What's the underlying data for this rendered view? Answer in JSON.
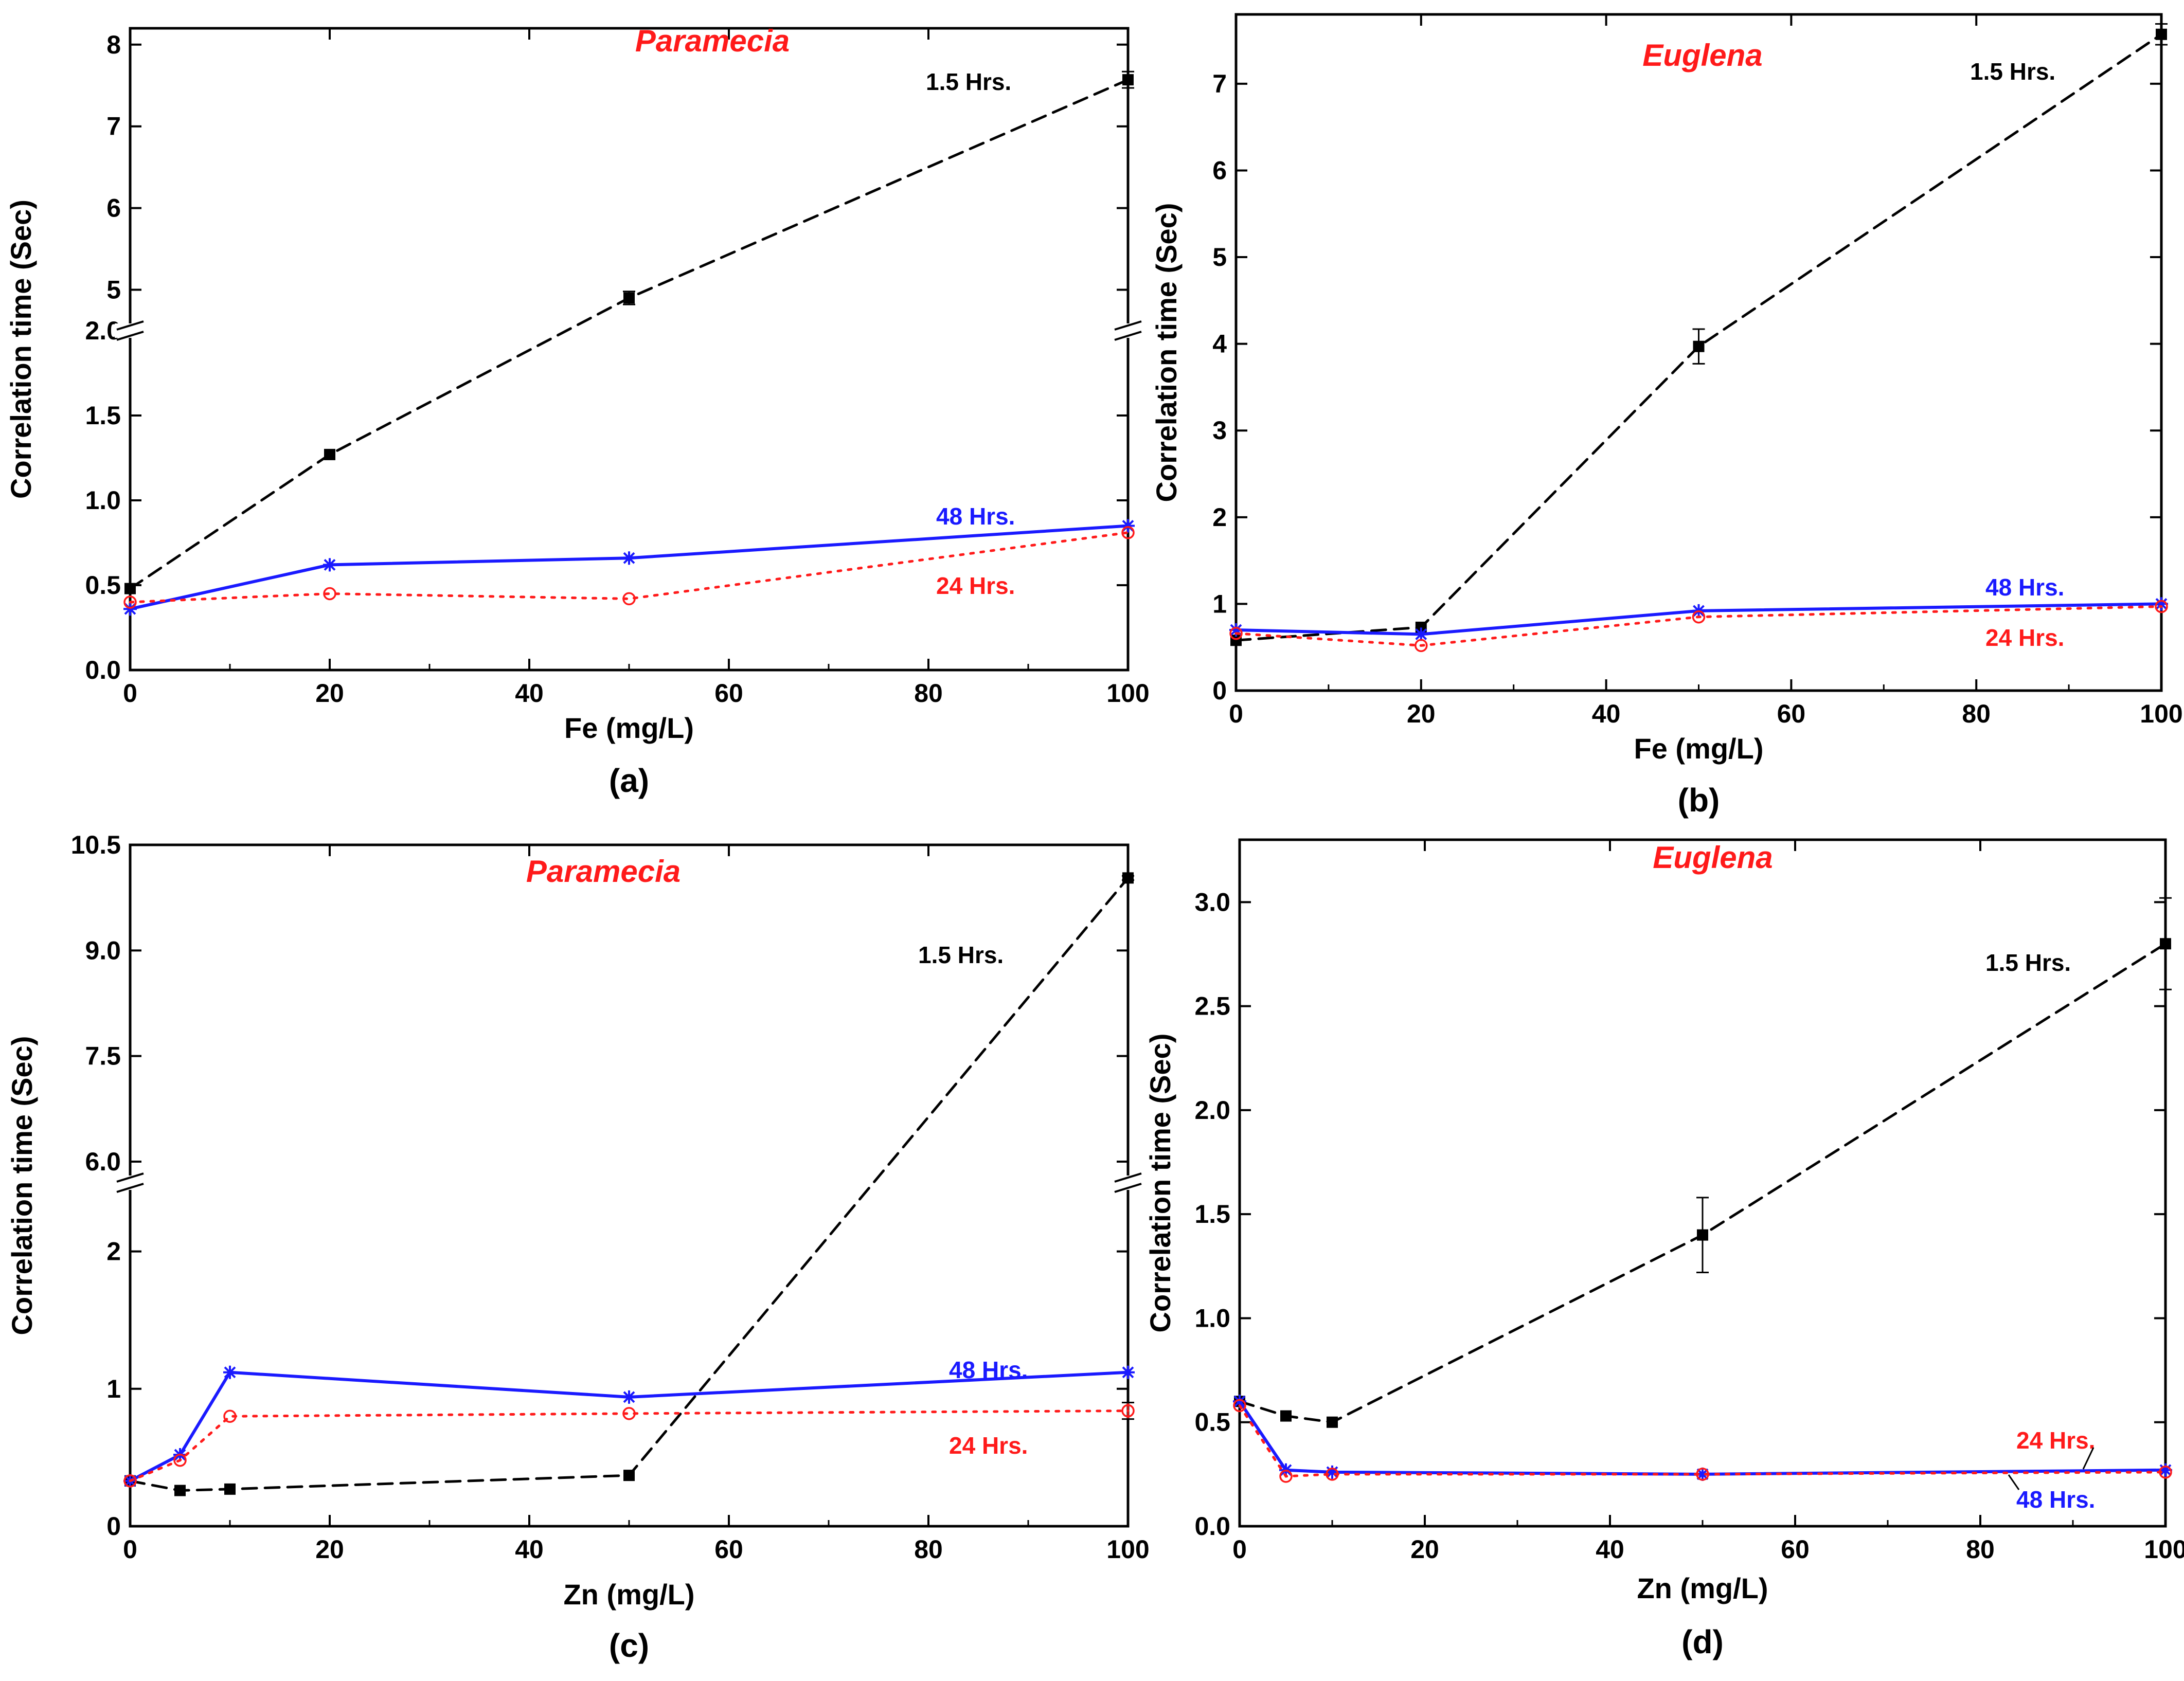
{
  "colors": {
    "black": "#000000",
    "blue": "#1a1aff",
    "red": "#ff1a1a",
    "title": "#ff1a1a"
  },
  "chart_data": [
    {
      "panel": "(a)",
      "type": "line",
      "title": "Paramecia",
      "xlabel": "Fe (mg/L)",
      "ylabel": "Correlation time (Sec)",
      "xlim": [
        0,
        100
      ],
      "xticks": [
        "0",
        "20",
        "40",
        "60",
        "80",
        "100"
      ],
      "y_break": true,
      "ylim_lower": [
        0,
        2.0
      ],
      "yticks_lower": [
        "0.0",
        "0.5",
        "1.0",
        "1.5",
        "2.0"
      ],
      "ylim_upper": [
        4.5,
        8.2
      ],
      "yticks_upper": [
        "5",
        "6",
        "7",
        "8"
      ],
      "series": [
        {
          "name": "1.5 Hrs.",
          "color": "#000000",
          "dash": "dashed",
          "marker": "square",
          "x": [
            0,
            20,
            50,
            100
          ],
          "y": [
            0.48,
            1.27,
            4.9,
            7.57
          ],
          "err": [
            0,
            0,
            0.08,
            0.1
          ]
        },
        {
          "name": "48 Hrs.",
          "color": "#1a1aff",
          "dash": "solid",
          "marker": "star",
          "x": [
            0,
            20,
            50,
            100
          ],
          "y": [
            0.36,
            0.62,
            0.66,
            0.85
          ],
          "err": [
            0,
            0,
            0,
            0
          ]
        },
        {
          "name": "24 Hrs.",
          "color": "#ff1a1a",
          "dash": "dotted",
          "marker": "circle",
          "x": [
            0,
            20,
            50,
            100
          ],
          "y": [
            0.4,
            0.45,
            0.42,
            0.81
          ],
          "err": [
            0,
            0,
            0,
            0
          ]
        }
      ]
    },
    {
      "panel": "(b)",
      "type": "line",
      "title": "Euglena",
      "xlabel": "Fe (mg/L)",
      "ylabel": "Correlation time (Sec)",
      "xlim": [
        0,
        100
      ],
      "xticks": [
        "0",
        "20",
        "40",
        "60",
        "80",
        "100"
      ],
      "y_break": false,
      "ylim": [
        0,
        7.8
      ],
      "yticks": [
        "0",
        "1",
        "2",
        "3",
        "4",
        "5",
        "6",
        "7"
      ],
      "series": [
        {
          "name": "1.5 Hrs.",
          "color": "#000000",
          "dash": "dashed",
          "marker": "square",
          "x": [
            0,
            20,
            50,
            100
          ],
          "y": [
            0.58,
            0.73,
            3.97,
            7.57
          ],
          "err": [
            0,
            0,
            0.2,
            0.12
          ]
        },
        {
          "name": "48 Hrs.",
          "color": "#1a1aff",
          "dash": "solid",
          "marker": "star",
          "x": [
            0,
            20,
            50,
            100
          ],
          "y": [
            0.7,
            0.65,
            0.92,
            1.0
          ],
          "err": [
            0,
            0,
            0,
            0
          ]
        },
        {
          "name": "24 Hrs.",
          "color": "#ff1a1a",
          "dash": "dotted",
          "marker": "circle",
          "x": [
            0,
            20,
            50,
            100
          ],
          "y": [
            0.66,
            0.52,
            0.85,
            0.97
          ],
          "err": [
            0,
            0,
            0,
            0
          ]
        }
      ]
    },
    {
      "panel": "(c)",
      "type": "line",
      "title": "Paramecia",
      "xlabel": "Zn (mg/L)",
      "ylabel": "Correlation time (Sec)",
      "xlim": [
        0,
        100
      ],
      "xticks": [
        "0",
        "20",
        "40",
        "60",
        "80",
        "100"
      ],
      "y_break": true,
      "ylim_lower": [
        0,
        2.5
      ],
      "yticks_lower": [
        "0",
        "1",
        "2"
      ],
      "ylim_upper": [
        5.7,
        10.5
      ],
      "yticks_upper": [
        "6.0",
        "7.5",
        "9.0",
        "10.5"
      ],
      "series": [
        {
          "name": "1.5 Hrs.",
          "color": "#000000",
          "dash": "dashed",
          "marker": "square",
          "x": [
            0,
            5,
            10,
            50,
            100
          ],
          "y": [
            0.33,
            0.26,
            0.27,
            0.37,
            10.03
          ],
          "err": [
            0,
            0,
            0,
            0,
            0.03
          ]
        },
        {
          "name": "48 Hrs.",
          "color": "#1a1aff",
          "dash": "solid",
          "marker": "star",
          "x": [
            0,
            5,
            10,
            50,
            100
          ],
          "y": [
            0.33,
            0.52,
            1.12,
            0.94,
            1.12
          ],
          "err": [
            0,
            0,
            0,
            0,
            0
          ]
        },
        {
          "name": "24 Hrs.",
          "color": "#ff1a1a",
          "dash": "dotted",
          "marker": "circle",
          "x": [
            0,
            5,
            10,
            50,
            100
          ],
          "y": [
            0.33,
            0.48,
            0.8,
            0.82,
            0.84
          ],
          "err": [
            0,
            0,
            0,
            0,
            0.06
          ]
        }
      ]
    },
    {
      "panel": "(d)",
      "type": "line",
      "title": "Euglena",
      "xlabel": "Zn (mg/L)",
      "ylabel": "Correlation time (Sec)",
      "xlim": [
        0,
        100
      ],
      "xticks": [
        "0",
        "20",
        "40",
        "60",
        "80",
        "100"
      ],
      "y_break": false,
      "ylim": [
        0,
        3.3
      ],
      "yticks": [
        "0.0",
        "0.5",
        "1.0",
        "1.5",
        "2.0",
        "2.5",
        "3.0"
      ],
      "series": [
        {
          "name": "1.5 Hrs.",
          "color": "#000000",
          "dash": "dashed",
          "marker": "square",
          "x": [
            0,
            5,
            10,
            50,
            100
          ],
          "y": [
            0.6,
            0.53,
            0.5,
            1.4,
            2.8
          ],
          "err": [
            0,
            0,
            0,
            0.18,
            0.22
          ]
        },
        {
          "name": "48 Hrs.",
          "color": "#1a1aff",
          "dash": "solid",
          "marker": "star",
          "x": [
            0,
            5,
            10,
            50,
            100
          ],
          "y": [
            0.6,
            0.27,
            0.26,
            0.25,
            0.27
          ],
          "err": [
            0,
            0,
            0,
            0,
            0
          ]
        },
        {
          "name": "24 Hrs.",
          "color": "#ff1a1a",
          "dash": "dotted",
          "marker": "circle",
          "x": [
            0,
            5,
            10,
            50,
            100
          ],
          "y": [
            0.58,
            0.24,
            0.25,
            0.25,
            0.26
          ],
          "err": [
            0,
            0,
            0,
            0,
            0
          ]
        }
      ]
    }
  ]
}
